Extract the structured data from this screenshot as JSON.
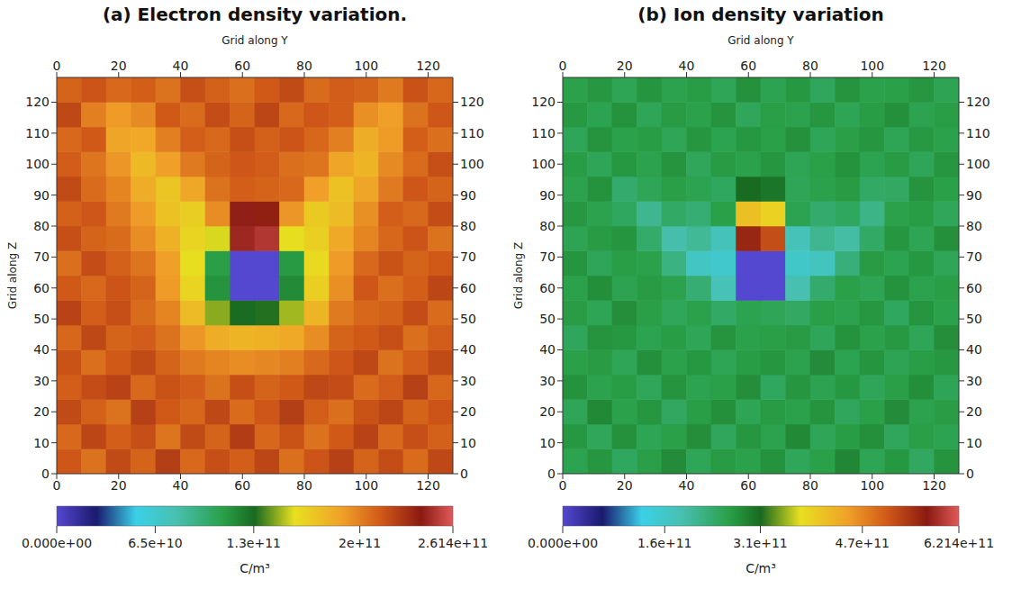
{
  "chart_data": [
    {
      "type": "heatmap",
      "title": "(a) Electron density variation.",
      "x_label": "Grid along Y",
      "y_label": "Grid along Z",
      "xlim": [
        0,
        128
      ],
      "ylim": [
        0,
        128
      ],
      "xticks": [
        0,
        20,
        40,
        60,
        80,
        100,
        120
      ],
      "yticks": [
        0,
        10,
        20,
        30,
        40,
        50,
        60,
        70,
        80,
        90,
        100,
        110,
        120
      ],
      "x_edges": [
        0,
        8,
        16,
        24,
        32,
        40,
        48,
        56,
        64,
        72,
        80,
        88,
        96,
        104,
        112,
        120,
        128
      ],
      "y_edges": [
        0,
        8,
        16,
        24,
        32,
        40,
        48,
        56,
        64,
        72,
        80,
        88,
        96,
        104,
        112,
        120,
        128
      ],
      "cells": [
        [
          215000000000.0,
          205000000000.0,
          220000000000.0,
          210000000000.0,
          225000000000.0,
          208000000000.0,
          218000000000.0,
          212000000000.0,
          222000000000.0,
          206000000000.0,
          216000000000.0,
          224000000000.0,
          210000000000.0,
          219000000000.0,
          207000000000.0,
          221000000000.0
        ],
        [
          208000000000.0,
          222000000000.0,
          212000000000.0,
          218000000000.0,
          204000000000.0,
          220000000000.0,
          210000000000.0,
          226000000000.0,
          209000000000.0,
          217000000000.0,
          205000000000.0,
          214000000000.0,
          223000000000.0,
          208000000000.0,
          218000000000.0,
          211000000000.0
        ],
        [
          220000000000.0,
          211000000000.0,
          205000000000.0,
          224000000000.0,
          214000000000.0,
          209000000000.0,
          221000000000.0,
          207000000000.0,
          215000000000.0,
          225000000000.0,
          212000000000.0,
          206000000000.0,
          217000000000.0,
          222000000000.0,
          210000000000.0,
          216000000000.0
        ],
        [
          212000000000.0,
          219000000000.0,
          223000000000.0,
          208000000000.0,
          217000000000.0,
          213000000000.0,
          205000000000.0,
          218000000000.0,
          210000000000.0,
          214000000000.0,
          221000000000.0,
          219000000000.0,
          207000000000.0,
          213000000000.0,
          224000000000.0,
          209000000000.0
        ],
        [
          217000000000.0,
          206000000000.0,
          214000000000.0,
          220000000000.0,
          210000000000.0,
          202000000000.0,
          198000000000.0,
          195000000000.0,
          197000000000.0,
          200000000000.0,
          208000000000.0,
          215000000000.0,
          221000000000.0,
          205000000000.0,
          212000000000.0,
          220000000000.0
        ],
        [
          209000000000.0,
          221000000000.0,
          210000000000.0,
          213000000000.0,
          205000000000.0,
          192000000000.0,
          182000000000.0,
          178000000000.0,
          180000000000.0,
          184000000000.0,
          195000000000.0,
          210000000000.0,
          214000000000.0,
          218000000000.0,
          206000000000.0,
          213000000000.0
        ],
        [
          223000000000.0,
          212000000000.0,
          218000000000.0,
          207000000000.0,
          198000000000.0,
          175000000000.0,
          145000000000.0,
          130000000000.0,
          132000000000.0,
          148000000000.0,
          178000000000.0,
          202000000000.0,
          209000000000.0,
          211000000000.0,
          219000000000.0,
          207000000000.0
        ],
        [
          214000000000.0,
          208000000000.0,
          216000000000.0,
          210000000000.0,
          190000000000.0,
          162000000000.0,
          115000000000.0,
          0,
          0,
          118000000000.0,
          165000000000.0,
          194000000000.0,
          215000000000.0,
          206000000000.0,
          212000000000.0,
          222000000000.0
        ],
        [
          206000000000.0,
          219000000000.0,
          211000000000.0,
          204000000000.0,
          188000000000.0,
          158000000000.0,
          110000000000.0,
          0,
          0,
          112000000000.0,
          160000000000.0,
          190000000000.0,
          208000000000.0,
          217000000000.0,
          210000000000.0,
          214000000000.0
        ],
        [
          218000000000.0,
          210000000000.0,
          207000000000.0,
          195000000000.0,
          180000000000.0,
          162000000000.0,
          155000000000.0,
          245000000000.0,
          250000000000.0,
          158000000000.0,
          165000000000.0,
          184000000000.0,
          198000000000.0,
          209000000000.0,
          216000000000.0,
          205000000000.0
        ],
        [
          211000000000.0,
          215000000000.0,
          202000000000.0,
          190000000000.0,
          172000000000.0,
          166000000000.0,
          195000000000.0,
          242000000000.0,
          238000000000.0,
          192000000000.0,
          168000000000.0,
          175000000000.0,
          194000000000.0,
          212000000000.0,
          208000000000.0,
          219000000000.0
        ],
        [
          220000000000.0,
          207000000000.0,
          198000000000.0,
          182000000000.0,
          170000000000.0,
          185000000000.0,
          205000000000.0,
          212000000000.0,
          210000000000.0,
          208000000000.0,
          188000000000.0,
          172000000000.0,
          186000000000.0,
          202000000000.0,
          215000000000.0,
          210000000000.0
        ],
        [
          213000000000.0,
          204000000000.0,
          192000000000.0,
          176000000000.0,
          188000000000.0,
          202000000000.0,
          210000000000.0,
          215000000000.0,
          213000000000.0,
          206000000000.0,
          204000000000.0,
          186000000000.0,
          178000000000.0,
          196000000000.0,
          207000000000.0,
          218000000000.0
        ],
        [
          208000000000.0,
          214000000000.0,
          186000000000.0,
          184000000000.0,
          200000000000.0,
          212000000000.0,
          208000000000.0,
          218000000000.0,
          211000000000.0,
          216000000000.0,
          209000000000.0,
          200000000000.0,
          182000000000.0,
          190000000000.0,
          212000000000.0,
          206000000000.0
        ],
        [
          221000000000.0,
          200000000000.0,
          190000000000.0,
          196000000000.0,
          214000000000.0,
          207000000000.0,
          219000000000.0,
          210000000000.0,
          222000000000.0,
          208000000000.0,
          215000000000.0,
          212000000000.0,
          194000000000.0,
          188000000000.0,
          205000000000.0,
          215000000000.0
        ],
        [
          210000000000.0,
          216000000000.0,
          208000000000.0,
          212000000000.0,
          205000000000.0,
          218000000000.0,
          211000000000.0,
          206000000000.0,
          214000000000.0,
          220000000000.0,
          207000000000.0,
          213000000000.0,
          210000000000.0,
          202000000000.0,
          217000000000.0,
          209000000000.0
        ]
      ],
      "colorbar": {
        "range": [
          0,
          261400000000.0
        ],
        "label": "C/m³",
        "ticks": [
          {
            "value": 0,
            "label": "0.000e+00"
          },
          {
            "value": 65000000000.0,
            "label": "6.5e+10"
          },
          {
            "value": 130000000000.0,
            "label": "1.3e+11"
          },
          {
            "value": 200000000000.0,
            "label": "2e+11"
          },
          {
            "value": 261400000000.0,
            "label": "2.614e+11"
          }
        ]
      }
    },
    {
      "type": "heatmap",
      "title": "(b) Ion density variation",
      "x_label": "Grid along Y",
      "y_label": "Grid along Z",
      "xlim": [
        0,
        128
      ],
      "ylim": [
        0,
        128
      ],
      "xticks": [
        0,
        20,
        40,
        60,
        80,
        100,
        120
      ],
      "yticks": [
        0,
        10,
        20,
        30,
        40,
        50,
        60,
        70,
        80,
        90,
        100,
        110,
        120
      ],
      "x_edges": [
        0,
        8,
        16,
        24,
        32,
        40,
        48,
        56,
        64,
        72,
        80,
        88,
        96,
        104,
        112,
        120,
        128
      ],
      "y_edges": [
        0,
        8,
        16,
        24,
        32,
        40,
        48,
        56,
        64,
        72,
        80,
        88,
        96,
        104,
        112,
        120,
        128
      ],
      "cells": [
        [
          255000000000.0,
          270000000000.0,
          245000000000.0,
          262000000000.0,
          280000000000.0,
          250000000000.0,
          266000000000.0,
          258000000000.0,
          274000000000.0,
          248000000000.0,
          260000000000.0,
          285000000000.0,
          252000000000.0,
          268000000000.0,
          244000000000.0,
          272000000000.0
        ],
        [
          268000000000.0,
          248000000000.0,
          275000000000.0,
          252000000000.0,
          260000000000.0,
          278000000000.0,
          246000000000.0,
          270000000000.0,
          256000000000.0,
          282000000000.0,
          250000000000.0,
          264000000000.0,
          276000000000.0,
          247000000000.0,
          262000000000.0,
          255000000000.0
        ],
        [
          250000000000.0,
          282000000000.0,
          258000000000.0,
          270000000000.0,
          244000000000.0,
          263000000000.0,
          276000000000.0,
          252000000000.0,
          266000000000.0,
          258000000000.0,
          272000000000.0,
          246000000000.0,
          260000000000.0,
          280000000000.0,
          257000000000.0,
          265000000000.0
        ],
        [
          274000000000.0,
          256000000000.0,
          264000000000.0,
          248000000000.0,
          272000000000.0,
          255000000000.0,
          260000000000.0,
          278000000000.0,
          245000000000.0,
          270000000000.0,
          254000000000.0,
          268000000000.0,
          249000000000.0,
          262000000000.0,
          277000000000.0,
          251000000000.0
        ],
        [
          260000000000.0,
          266000000000.0,
          250000000000.0,
          276000000000.0,
          258000000000.0,
          268000000000.0,
          252000000000.0,
          264000000000.0,
          270000000000.0,
          257000000000.0,
          280000000000.0,
          255000000000.0,
          271000000000.0,
          253000000000.0,
          263000000000.0,
          269000000000.0
        ],
        [
          247000000000.0,
          273000000000.0,
          268000000000.0,
          255000000000.0,
          264000000000.0,
          250000000000.0,
          272000000000.0,
          258000000000.0,
          262000000000.0,
          266000000000.0,
          249000000000.0,
          274000000000.0,
          258000000000.0,
          267000000000.0,
          250000000000.0,
          278000000000.0
        ],
        [
          265000000000.0,
          252000000000.0,
          278000000000.0,
          262000000000.0,
          248000000000.0,
          258000000000.0,
          240000000000.0,
          255000000000.0,
          250000000000.0,
          242000000000.0,
          262000000000.0,
          256000000000.0,
          269000000000.0,
          245000000000.0,
          271000000000.0,
          259000000000.0
        ],
        [
          258000000000.0,
          277000000000.0,
          254000000000.0,
          266000000000.0,
          256000000000.0,
          230000000000.0,
          180000000000.0,
          0,
          0,
          185000000000.0,
          235000000000.0,
          260000000000.0,
          252000000000.0,
          274000000000.0,
          256000000000.0,
          263000000000.0
        ],
        [
          271000000000.0,
          249000000000.0,
          263000000000.0,
          258000000000.0,
          220000000000.0,
          165000000000.0,
          155000000000.0,
          0,
          0,
          160000000000.0,
          170000000000.0,
          225000000000.0,
          266000000000.0,
          255000000000.0,
          268000000000.0,
          250000000000.0
        ],
        [
          253000000000.0,
          266000000000.0,
          271000000000.0,
          236000000000.0,
          190000000000.0,
          205000000000.0,
          175000000000.0,
          560000000000.0,
          520000000000.0,
          178000000000.0,
          210000000000.0,
          195000000000.0,
          240000000000.0,
          270000000000.0,
          252000000000.0,
          276000000000.0
        ],
        [
          269000000000.0,
          257000000000.0,
          245000000000.0,
          210000000000.0,
          240000000000.0,
          230000000000.0,
          260000000000.0,
          410000000000.0,
          390000000000.0,
          255000000000.0,
          235000000000.0,
          245000000000.0,
          215000000000.0,
          258000000000.0,
          264000000000.0,
          248000000000.0
        ],
        [
          256000000000.0,
          274000000000.0,
          235000000000.0,
          250000000000.0,
          262000000000.0,
          255000000000.0,
          245000000000.0,
          310000000000.0,
          300000000000.0,
          250000000000.0,
          258000000000.0,
          266000000000.0,
          240000000000.0,
          242000000000.0,
          273000000000.0,
          261000000000.0
        ],
        [
          264000000000.0,
          250000000000.0,
          268000000000.0,
          256000000000.0,
          272000000000.0,
          248000000000.0,
          266000000000.0,
          258000000000.0,
          270000000000.0,
          252000000000.0,
          260000000000.0,
          274000000000.0,
          255000000000.0,
          266000000000.0,
          249000000000.0,
          270000000000.0
        ],
        [
          249000000000.0,
          272000000000.0,
          258000000000.0,
          264000000000.0,
          250000000000.0,
          270000000000.0,
          255000000000.0,
          268000000000.0,
          260000000000.0,
          275000000000.0,
          250000000000.0,
          262000000000.0,
          270000000000.0,
          252000000000.0,
          267000000000.0,
          258000000000.0
        ],
        [
          267000000000.0,
          255000000000.0,
          274000000000.0,
          250000000000.0,
          266000000000.0,
          258000000000.0,
          272000000000.0,
          248000000000.0,
          262000000000.0,
          256000000000.0,
          270000000000.0,
          252000000000.0,
          264000000000.0,
          276000000000.0,
          254000000000.0,
          263000000000.0
        ],
        [
          258000000000.0,
          269000000000.0,
          252000000000.0,
          271000000000.0,
          257000000000.0,
          264000000000.0,
          250000000000.0,
          275000000000.0,
          255000000000.0,
          268000000000.0,
          247000000000.0,
          272000000000.0,
          258000000000.0,
          261000000000.0,
          270000000000.0,
          253000000000.0
        ]
      ],
      "colorbar": {
        "range": [
          0,
          621400000000.0
        ],
        "label": "C/m³",
        "ticks": [
          {
            "value": 0,
            "label": "0.000e+00"
          },
          {
            "value": 160000000000.0,
            "label": "1.6e+11"
          },
          {
            "value": 310000000000.0,
            "label": "3.1e+11"
          },
          {
            "value": 470000000000.0,
            "label": "4.7e+11"
          },
          {
            "value": 621400000000.0,
            "label": "6.214e+11"
          }
        ]
      }
    }
  ]
}
